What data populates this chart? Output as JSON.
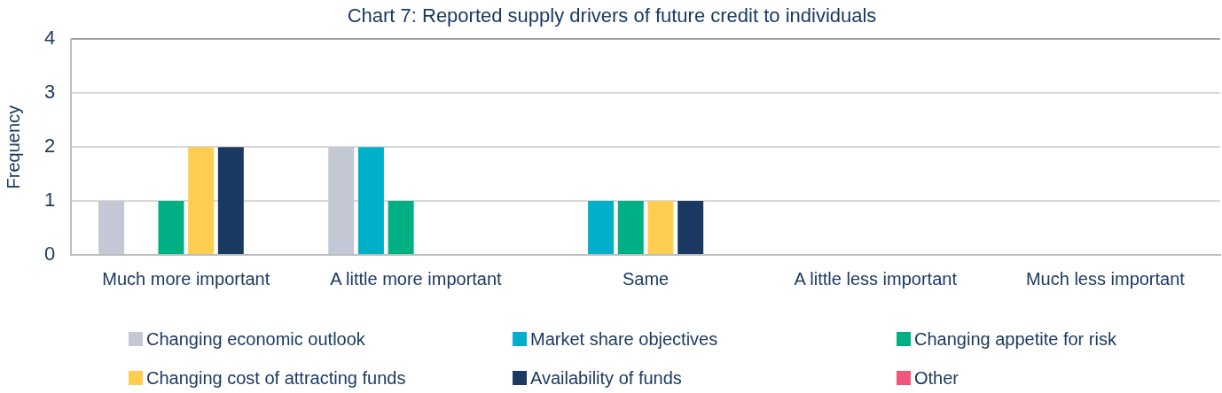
{
  "chart_data": {
    "type": "bar",
    "title": "Chart 7: Reported supply drivers of future credit to individuals",
    "ylabel": "Frequency",
    "categories": [
      "Much more important",
      "A little more important",
      "Same",
      "A little less important",
      "Much less important"
    ],
    "series": [
      {
        "name": "Changing economic outlook",
        "color": "#c3c8d4",
        "values": [
          1,
          2,
          0,
          0,
          0
        ]
      },
      {
        "name": "Market share objectives",
        "color": "#00b0c8",
        "values": [
          0,
          2,
          1,
          0,
          0
        ]
      },
      {
        "name": "Changing appetite for risk",
        "color": "#00b084",
        "values": [
          1,
          1,
          1,
          0,
          0
        ]
      },
      {
        "name": "Changing cost of attracting funds",
        "color": "#ffcd4f",
        "values": [
          2,
          0,
          1,
          0,
          0
        ]
      },
      {
        "name": "Availability of funds",
        "color": "#1b3a63",
        "values": [
          2,
          0,
          1,
          0,
          0
        ]
      },
      {
        "name": "Other",
        "color": "#f0577a",
        "values": [
          0,
          0,
          0,
          0,
          0
        ]
      }
    ],
    "ylim": [
      0,
      4
    ],
    "yticks": [
      0,
      1,
      2,
      3,
      4
    ],
    "grid": "y",
    "legend": "bottom"
  }
}
